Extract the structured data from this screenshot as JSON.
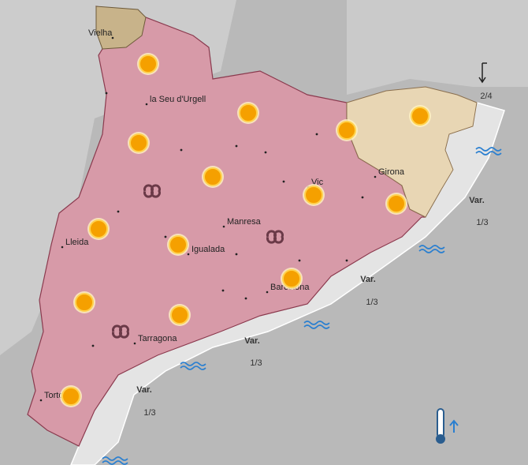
{
  "cities": [
    "Vielha",
    "la Seu d'Urgell",
    "Vic",
    "Girona",
    "Manresa",
    "Lleida",
    "Igualada",
    "Barcelona",
    "Tarragona",
    "Tortosa"
  ],
  "sea": {
    "zones": [
      {
        "waves": "2/4"
      },
      {
        "wind": "Var.",
        "waves": "1/3"
      },
      {
        "wind": "Var.",
        "waves": "1/3"
      },
      {
        "wind": "Var.",
        "waves": "1/3"
      },
      {
        "wind": "Var.",
        "waves": "1/3"
      }
    ]
  }
}
